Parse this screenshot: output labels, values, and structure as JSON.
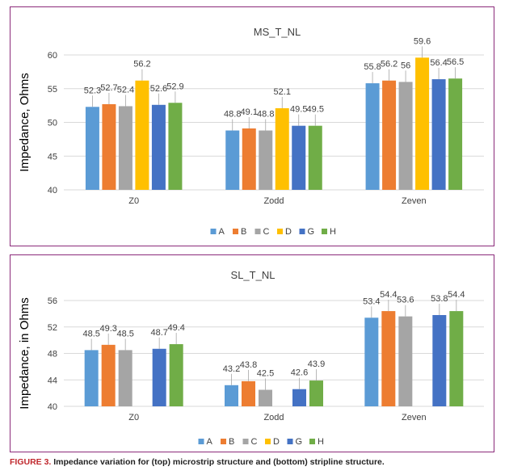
{
  "legend_labels": [
    "A",
    "B",
    "C",
    "D",
    "G",
    "H"
  ],
  "colors": {
    "A": "#5b9bd5",
    "B": "#ed7d31",
    "C": "#a5a5a5",
    "D": "#ffc000",
    "G": "#4472c4",
    "H": "#70ad47",
    "frame": "#8b2a7a",
    "caption_red": "#c0282d"
  },
  "chart_data": [
    {
      "type": "bar",
      "title": "MS_T_NL",
      "ylabel": "Impedance, Ohms",
      "xlabel": "",
      "categories": [
        "Z0",
        "Zodd",
        "Zeven"
      ],
      "ylim": [
        40,
        60
      ],
      "yticks": [
        40,
        45,
        50,
        55,
        60
      ],
      "grid": true,
      "legend": "bottom",
      "series": [
        {
          "name": "A",
          "values": [
            52.3,
            48.8,
            55.8
          ]
        },
        {
          "name": "B",
          "values": [
            52.7,
            49.1,
            56.2
          ]
        },
        {
          "name": "C",
          "values": [
            52.4,
            48.8,
            56
          ]
        },
        {
          "name": "D",
          "values": [
            56.2,
            52.1,
            59.6
          ]
        },
        {
          "name": "G",
          "values": [
            52.6,
            49.5,
            56.4
          ]
        },
        {
          "name": "H",
          "values": [
            52.9,
            49.5,
            56.5
          ]
        }
      ]
    },
    {
      "type": "bar",
      "title": "SL_T_NL",
      "ylabel": "Impedance, in Ohms",
      "xlabel": "",
      "categories": [
        "Z0",
        "Zodd",
        "Zeven"
      ],
      "ylim": [
        40,
        56
      ],
      "yticks": [
        40,
        44,
        48,
        52,
        56
      ],
      "grid": true,
      "legend": "bottom",
      "series": [
        {
          "name": "A",
          "values": [
            48.5,
            43.2,
            53.4
          ]
        },
        {
          "name": "B",
          "values": [
            49.3,
            43.8,
            54.4
          ]
        },
        {
          "name": "C",
          "values": [
            48.5,
            42.5,
            53.6
          ]
        },
        {
          "name": "D",
          "values": [
            null,
            null,
            null
          ]
        },
        {
          "name": "G",
          "values": [
            48.7,
            42.6,
            53.8
          ]
        },
        {
          "name": "H",
          "values": [
            49.4,
            43.9,
            54.4
          ]
        }
      ]
    }
  ],
  "caption": {
    "label": "FIGURE 3.",
    "text": " Impedance variation for (top) microstrip structure and (bottom) stripline structure."
  }
}
